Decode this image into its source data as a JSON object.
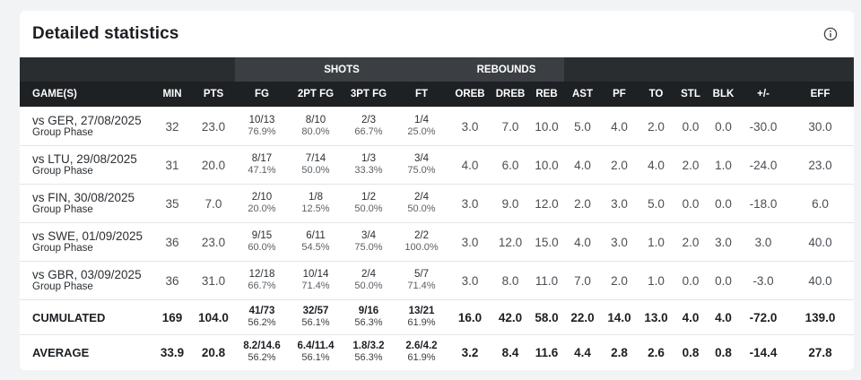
{
  "title": "Detailed statistics",
  "groups": {
    "shots": "SHOTS",
    "rebounds": "REBOUNDS"
  },
  "columns": [
    "GAME(S)",
    "MIN",
    "PTS",
    "FG",
    "2PT FG",
    "3PT FG",
    "FT",
    "OREB",
    "DREB",
    "REB",
    "AST",
    "PF",
    "TO",
    "STL",
    "BLK",
    "+/-",
    "EFF"
  ],
  "games": [
    {
      "opponent": "vs GER, 27/08/2025",
      "phase": "Group Phase",
      "min": "32",
      "pts": "23.0",
      "fg": [
        "10/13",
        "76.9%"
      ],
      "fg2": [
        "8/10",
        "80.0%"
      ],
      "fg3": [
        "2/3",
        "66.7%"
      ],
      "ft": [
        "1/4",
        "25.0%"
      ],
      "oreb": "3.0",
      "dreb": "7.0",
      "reb": "10.0",
      "ast": "5.0",
      "pf": "4.0",
      "to": "2.0",
      "stl": "0.0",
      "blk": "0.0",
      "pm": "-30.0",
      "eff": "30.0"
    },
    {
      "opponent": "vs LTU, 29/08/2025",
      "phase": "Group Phase",
      "min": "31",
      "pts": "20.0",
      "fg": [
        "8/17",
        "47.1%"
      ],
      "fg2": [
        "7/14",
        "50.0%"
      ],
      "fg3": [
        "1/3",
        "33.3%"
      ],
      "ft": [
        "3/4",
        "75.0%"
      ],
      "oreb": "4.0",
      "dreb": "6.0",
      "reb": "10.0",
      "ast": "4.0",
      "pf": "2.0",
      "to": "4.0",
      "stl": "2.0",
      "blk": "1.0",
      "pm": "-24.0",
      "eff": "23.0"
    },
    {
      "opponent": "vs FIN, 30/08/2025",
      "phase": "Group Phase",
      "min": "35",
      "pts": "7.0",
      "fg": [
        "2/10",
        "20.0%"
      ],
      "fg2": [
        "1/8",
        "12.5%"
      ],
      "fg3": [
        "1/2",
        "50.0%"
      ],
      "ft": [
        "2/4",
        "50.0%"
      ],
      "oreb": "3.0",
      "dreb": "9.0",
      "reb": "12.0",
      "ast": "2.0",
      "pf": "3.0",
      "to": "5.0",
      "stl": "0.0",
      "blk": "0.0",
      "pm": "-18.0",
      "eff": "6.0"
    },
    {
      "opponent": "vs SWE, 01/09/2025",
      "phase": "Group Phase",
      "min": "36",
      "pts": "23.0",
      "fg": [
        "9/15",
        "60.0%"
      ],
      "fg2": [
        "6/11",
        "54.5%"
      ],
      "fg3": [
        "3/4",
        "75.0%"
      ],
      "ft": [
        "2/2",
        "100.0%"
      ],
      "oreb": "3.0",
      "dreb": "12.0",
      "reb": "15.0",
      "ast": "4.0",
      "pf": "3.0",
      "to": "1.0",
      "stl": "2.0",
      "blk": "3.0",
      "pm": "3.0",
      "eff": "40.0"
    },
    {
      "opponent": "vs GBR, 03/09/2025",
      "phase": "Group Phase",
      "min": "36",
      "pts": "31.0",
      "fg": [
        "12/18",
        "66.7%"
      ],
      "fg2": [
        "10/14",
        "71.4%"
      ],
      "fg3": [
        "2/4",
        "50.0%"
      ],
      "ft": [
        "5/7",
        "71.4%"
      ],
      "oreb": "3.0",
      "dreb": "8.0",
      "reb": "11.0",
      "ast": "7.0",
      "pf": "2.0",
      "to": "1.0",
      "stl": "0.0",
      "blk": "0.0",
      "pm": "-3.0",
      "eff": "40.0"
    }
  ],
  "cumulated": {
    "label": "CUMULATED",
    "min": "169",
    "pts": "104.0",
    "fg": [
      "41/73",
      "56.2%"
    ],
    "fg2": [
      "32/57",
      "56.1%"
    ],
    "fg3": [
      "9/16",
      "56.3%"
    ],
    "ft": [
      "13/21",
      "61.9%"
    ],
    "oreb": "16.0",
    "dreb": "42.0",
    "reb": "58.0",
    "ast": "22.0",
    "pf": "14.0",
    "to": "13.0",
    "stl": "4.0",
    "blk": "4.0",
    "pm": "-72.0",
    "eff": "139.0"
  },
  "average": {
    "label": "AVERAGE",
    "min": "33.9",
    "pts": "20.8",
    "fg": [
      "8.2/14.6",
      "56.2%"
    ],
    "fg2": [
      "6.4/11.4",
      "56.1%"
    ],
    "fg3": [
      "1.8/3.2",
      "56.3%"
    ],
    "ft": [
      "2.6/4.2",
      "61.9%"
    ],
    "oreb": "3.2",
    "dreb": "8.4",
    "reb": "11.6",
    "ast": "4.4",
    "pf": "2.8",
    "to": "2.6",
    "stl": "0.8",
    "blk": "0.8",
    "pm": "-14.4",
    "eff": "27.8"
  },
  "icons": {
    "info": "info-icon"
  }
}
